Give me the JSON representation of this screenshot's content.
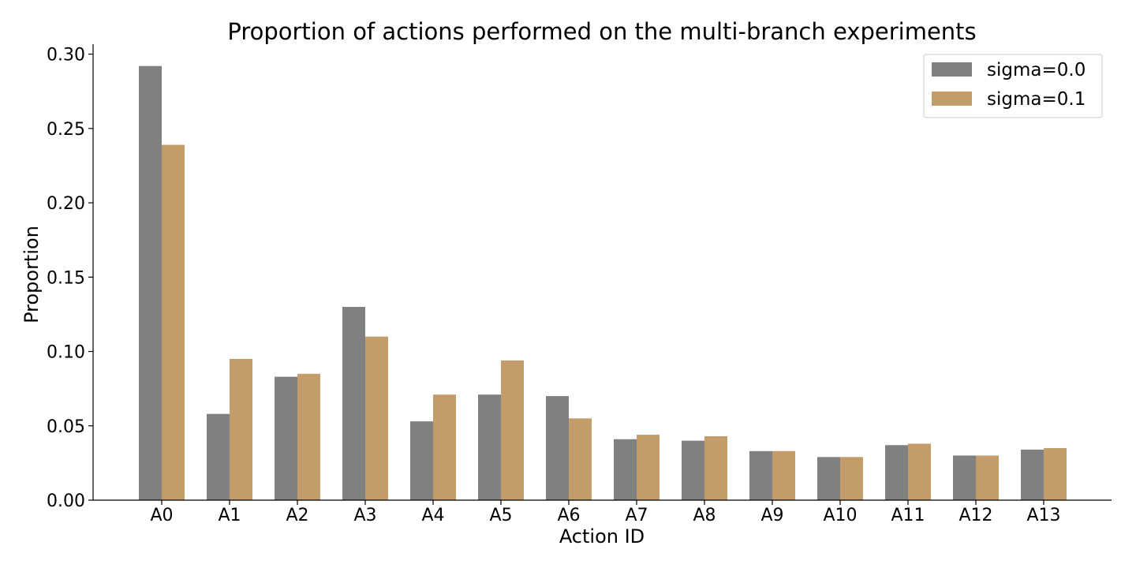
{
  "chart_data": {
    "type": "bar",
    "title": "Proportion of actions performed on the multi-branch experiments",
    "xlabel": "Action ID",
    "ylabel": "Proportion",
    "categories": [
      "A0",
      "A1",
      "A2",
      "A3",
      "A4",
      "A5",
      "A6",
      "A7",
      "A8",
      "A9",
      "A10",
      "A11",
      "A12",
      "A13"
    ],
    "series": [
      {
        "name": "sigma=0.0",
        "color": "#808080",
        "values": [
          0.292,
          0.058,
          0.083,
          0.13,
          0.053,
          0.071,
          0.07,
          0.041,
          0.04,
          0.033,
          0.029,
          0.037,
          0.03,
          0.034
        ]
      },
      {
        "name": "sigma=0.1",
        "color": "#C49C6A",
        "values": [
          0.239,
          0.095,
          0.085,
          0.11,
          0.071,
          0.094,
          0.055,
          0.044,
          0.043,
          0.033,
          0.029,
          0.038,
          0.03,
          0.035
        ]
      }
    ],
    "ylim": [
      0,
      0.3067
    ],
    "yticks": [
      "0.00",
      "0.05",
      "0.10",
      "0.15",
      "0.20",
      "0.25",
      "0.30"
    ],
    "ytick_values": [
      0,
      0.05,
      0.1,
      0.15,
      0.2,
      0.25,
      0.3
    ],
    "legend_position": "top-right",
    "grid": false
  }
}
